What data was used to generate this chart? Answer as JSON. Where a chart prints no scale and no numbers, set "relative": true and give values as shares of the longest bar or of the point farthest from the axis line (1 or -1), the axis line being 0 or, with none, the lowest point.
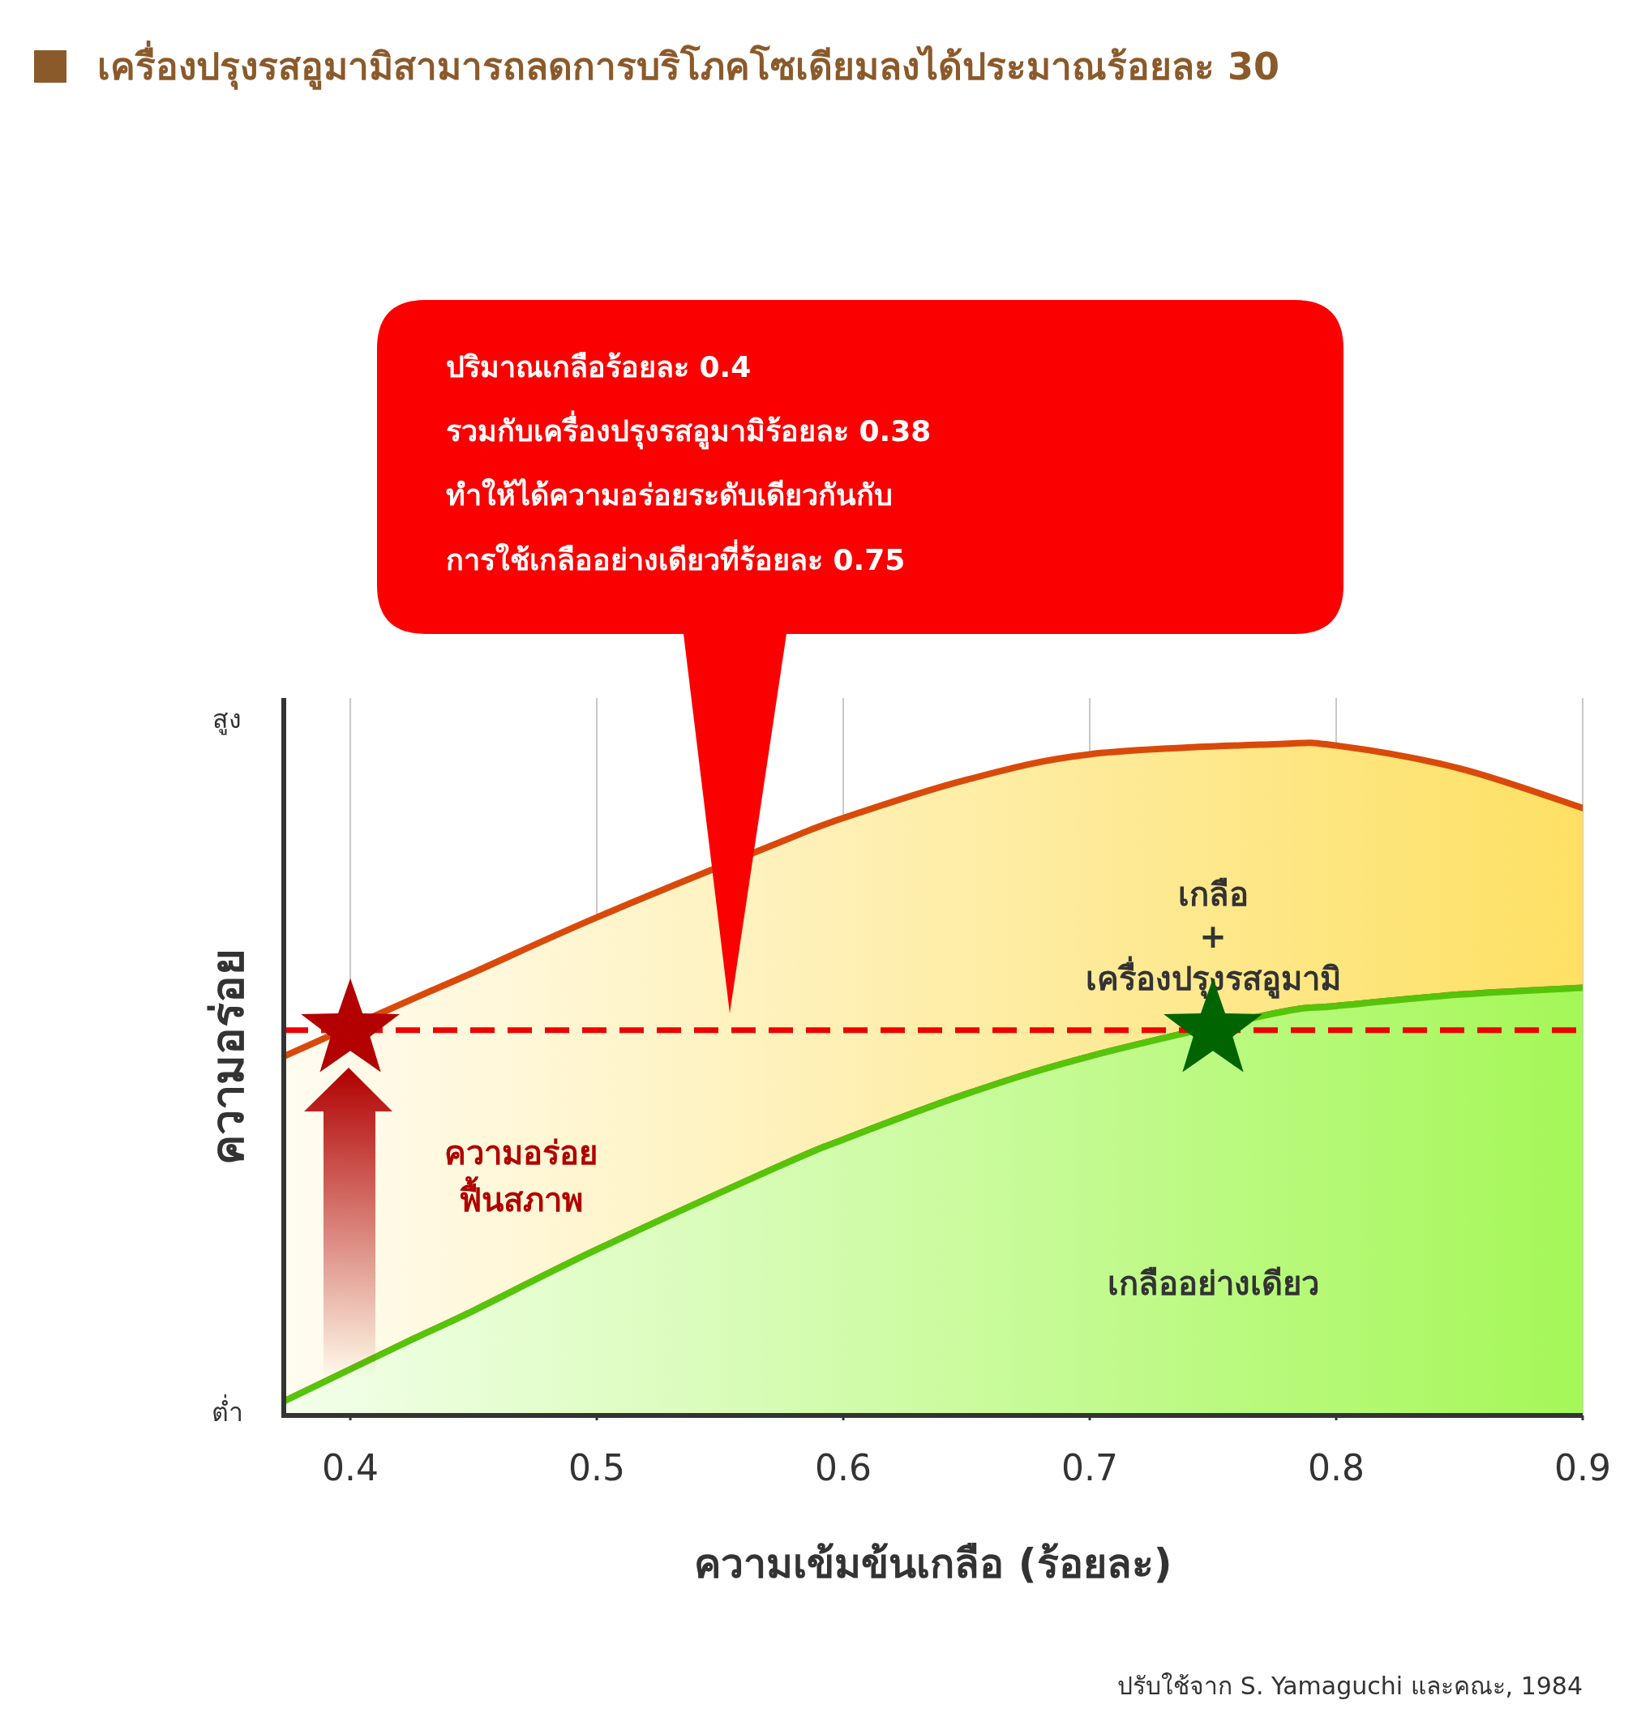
{
  "chart_data": {
    "type": "area",
    "title": "เครื่องปรุงรสอูมามิสามารถลดการบริโภคโซเดียมลงได้ประมาณร้อยละ 30",
    "xlabel": "ความเข้มข้นเกลือ (ร้อยละ)",
    "ylabel": "ความอร่อย",
    "relative": true,
    "x": [
      0.373,
      0.425,
      0.45,
      0.5,
      0.575,
      0.6,
      0.65,
      0.7,
      0.775,
      0.8,
      0.85,
      0.9
    ],
    "xlim": [
      0.373,
      0.9
    ],
    "xticks": [
      0.4,
      0.5,
      0.6,
      0.7,
      0.8,
      0.9
    ],
    "grid": "x",
    "marker": "none",
    "series": [
      {
        "name": "เกลืออย่างเดียว",
        "color": "#55c40a",
        "values": [
          0.021,
          0.113,
          0.156,
          0.247,
          0.373,
          0.411,
          0.479,
          0.535,
          0.599,
          0.61,
          0.627,
          0.637
        ]
      },
      {
        "name": "เกลือ\n+\nเครื่องปรุงรสอูมามิ",
        "color": "#d94a0a",
        "values": [
          0.535,
          0.62,
          0.66,
          0.742,
          0.855,
          0.89,
          0.947,
          0.985,
          1.0,
          0.998,
          0.964,
          0.905
        ]
      },
      {
        "type": "scatter",
        "marker": "star",
        "x": [
          0.4,
          0.75
        ],
        "values": [
          0.574,
          0.574
        ],
        "colors": [
          "#b30000",
          "#006400"
        ]
      }
    ],
    "ref_lines": [
      {
        "axis": "y",
        "value": 0.574,
        "color": "#ee0000",
        "line_style": "dashed"
      }
    ],
    "annotations": [
      "ปริมาณเกลือร้อยละ 0.4\nรวมกับเครื่องปรุงรสอูมามิร้อยละ 0.38\nทำให้ได้ความอร่อยระดับเดียวกันกับ\nการใช้เกลืออย่างเดียวที่ร้อยละ 0.75",
      "สูง",
      "ต่ำ",
      "ความอร่อย\nฟื้นสภาพ",
      "ปรับใช้จาก S. Yamaguchi และคณะ, 1984"
    ]
  }
}
